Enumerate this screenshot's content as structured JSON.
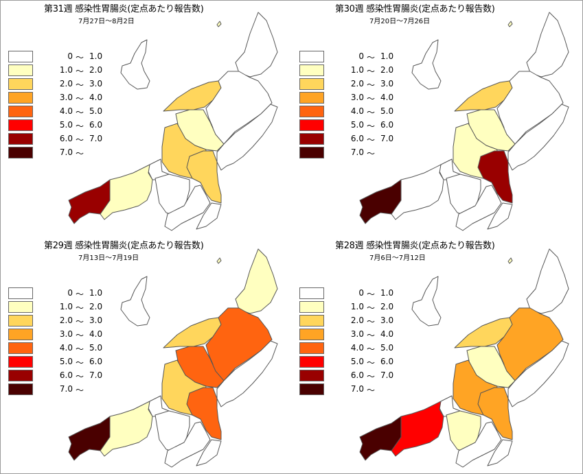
{
  "legend_colors": [
    "#ffffff",
    "#ffffc0",
    "#ffd65c",
    "#ffa424",
    "#ff6410",
    "#ff0000",
    "#990000",
    "#4a0000"
  ],
  "legend": [
    {
      "lo": "0",
      "hi": "1.0"
    },
    {
      "lo": "1.0",
      "hi": "2.0"
    },
    {
      "lo": "2.0",
      "hi": "3.0"
    },
    {
      "lo": "3.0",
      "hi": "4.0"
    },
    {
      "lo": "4.0",
      "hi": "5.0"
    },
    {
      "lo": "5.0",
      "hi": "6.0"
    },
    {
      "lo": "6.0",
      "hi": "7.0"
    },
    {
      "lo": "7.0",
      "hi": ""
    }
  ],
  "tilde": "～",
  "panels": [
    {
      "title": "第31週 感染性胃腸炎(定点あたり報告数)",
      "date": "7月27日～8月2日",
      "regions": {
        "north": 0,
        "northmid": 2,
        "coastcenter": 0,
        "center": 1,
        "leftcenter": 2,
        "coastsw": 0,
        "rightcenter": 2,
        "rightwide": 0,
        "westsea": 1,
        "westend": 6,
        "southa": 0,
        "southb": 0,
        "southe": 0
      }
    },
    {
      "title": "第30週 感染性胃腸炎(定点あたり報告数)",
      "date": "7月20日～7月26日",
      "regions": {
        "north": 0,
        "northmid": 2,
        "coastcenter": 0,
        "center": 1,
        "leftcenter": 1,
        "coastsw": 0,
        "rightcenter": 6,
        "rightwide": 0,
        "westsea": 0,
        "westend": 7,
        "southa": 0,
        "southb": 0,
        "southe": 0
      }
    },
    {
      "title": "第29週 感染性胃腸炎(定点あたり報告数)",
      "date": "7月13日～7月19日",
      "regions": {
        "north": 1,
        "northmid": 2,
        "coastcenter": 4,
        "center": 4,
        "leftcenter": 2,
        "coastsw": 0,
        "rightcenter": 4,
        "rightwide": 0,
        "westsea": 1,
        "westend": 7,
        "southa": 0,
        "southb": 0,
        "southe": 0
      }
    },
    {
      "title": "第28週 感染性胃腸炎(定点あたり報告数)",
      "date": "7月6日～7月12日",
      "regions": {
        "north": 0,
        "northmid": 2,
        "coastcenter": 3,
        "center": 1,
        "leftcenter": 3,
        "coastsw": 0,
        "rightcenter": 3,
        "rightwide": 0,
        "westsea": 5,
        "westend": 7,
        "southa": 1,
        "southb": 0,
        "southe": 0
      }
    }
  ]
}
